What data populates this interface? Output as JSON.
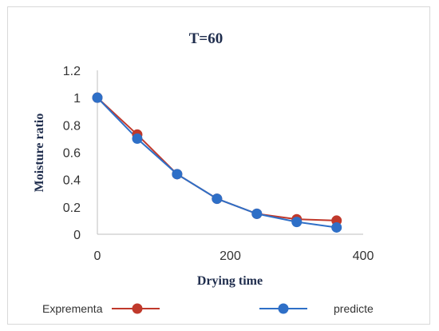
{
  "chart_data": {
    "type": "line",
    "title": "T=60",
    "xlabel": "Drying time",
    "ylabel": "Moisture ratio",
    "xlim": [
      0,
      400
    ],
    "ylim": [
      0,
      1.2
    ],
    "xticks": [
      0,
      200,
      400
    ],
    "yticks": [
      0,
      0.2,
      0.4,
      0.6,
      0.8,
      1,
      1.2
    ],
    "grid": false,
    "legend_position": "bottom",
    "series": [
      {
        "name": "Exprementa",
        "color": "#c0392b",
        "x": [
          0,
          60,
          120,
          180,
          240,
          300,
          360
        ],
        "y": [
          1.0,
          0.73,
          0.44,
          0.26,
          0.15,
          0.11,
          0.1
        ]
      },
      {
        "name": "predicte",
        "color": "#2e6fc7",
        "x": [
          0,
          60,
          120,
          180,
          240,
          300,
          360
        ],
        "y": [
          1.0,
          0.7,
          0.44,
          0.26,
          0.15,
          0.09,
          0.05
        ]
      }
    ]
  }
}
